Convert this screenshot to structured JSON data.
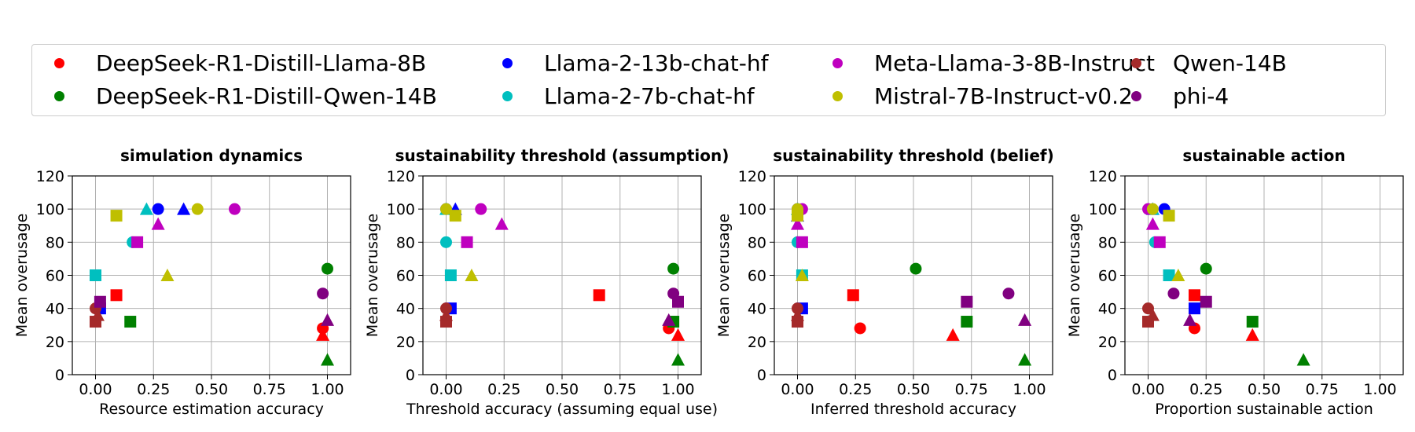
{
  "legend": {
    "placement": "top",
    "items": [
      {
        "name": "DeepSeek-R1-Distill-Llama-8B",
        "color": "#ff0000"
      },
      {
        "name": "DeepSeek-R1-Distill-Qwen-14B",
        "color": "#008000"
      },
      {
        "name": "Llama-2-13b-chat-hf",
        "color": "#0000ff"
      },
      {
        "name": "Llama-2-7b-chat-hf",
        "color": "#00bfbf"
      },
      {
        "name": "Meta-Llama-3-8B-Instruct",
        "color": "#bf00bf"
      },
      {
        "name": "Mistral-7B-Instruct-v0.2",
        "color": "#bfbf00"
      },
      {
        "name": "Qwen-14B",
        "color": "#a52a2a"
      },
      {
        "name": "phi-4",
        "color": "#800080"
      }
    ]
  },
  "chart_data": [
    {
      "type": "scatter",
      "title": "simulation dynamics",
      "xlabel": "Resource estimation accuracy",
      "ylabel": "Mean overusage",
      "xlim": [
        -0.1,
        1.1
      ],
      "ylim": [
        0,
        120
      ],
      "xticks": [
        "0.00",
        "0.25",
        "0.50",
        "0.75",
        "1.00"
      ],
      "yticks": [
        "0",
        "20",
        "40",
        "60",
        "80",
        "100",
        "120"
      ],
      "grid": true,
      "points": [
        {
          "series": "DeepSeek-R1-Distill-Llama-8B",
          "marker": "circle",
          "x": 0.98,
          "y": 28
        },
        {
          "series": "DeepSeek-R1-Distill-Llama-8B",
          "marker": "square",
          "x": 0.09,
          "y": 48
        },
        {
          "series": "DeepSeek-R1-Distill-Llama-8B",
          "marker": "triangle",
          "x": 0.98,
          "y": 24
        },
        {
          "series": "DeepSeek-R1-Distill-Qwen-14B",
          "marker": "circle",
          "x": 1.0,
          "y": 64
        },
        {
          "series": "DeepSeek-R1-Distill-Qwen-14B",
          "marker": "square",
          "x": 0.15,
          "y": 32
        },
        {
          "series": "DeepSeek-R1-Distill-Qwen-14B",
          "marker": "triangle",
          "x": 1.0,
          "y": 9
        },
        {
          "series": "Llama-2-13b-chat-hf",
          "marker": "circle",
          "x": 0.27,
          "y": 100
        },
        {
          "series": "Llama-2-13b-chat-hf",
          "marker": "square",
          "x": 0.02,
          "y": 40
        },
        {
          "series": "Llama-2-13b-chat-hf",
          "marker": "triangle",
          "x": 0.38,
          "y": 100
        },
        {
          "series": "Llama-2-7b-chat-hf",
          "marker": "circle",
          "x": 0.16,
          "y": 80
        },
        {
          "series": "Llama-2-7b-chat-hf",
          "marker": "square",
          "x": 0.0,
          "y": 60
        },
        {
          "series": "Llama-2-7b-chat-hf",
          "marker": "triangle",
          "x": 0.22,
          "y": 100
        },
        {
          "series": "Meta-Llama-3-8B-Instruct",
          "marker": "circle",
          "x": 0.6,
          "y": 100
        },
        {
          "series": "Meta-Llama-3-8B-Instruct",
          "marker": "square",
          "x": 0.18,
          "y": 80
        },
        {
          "series": "Meta-Llama-3-8B-Instruct",
          "marker": "triangle",
          "x": 0.27,
          "y": 91
        },
        {
          "series": "Mistral-7B-Instruct-v0.2",
          "marker": "circle",
          "x": 0.44,
          "y": 100
        },
        {
          "series": "Mistral-7B-Instruct-v0.2",
          "marker": "square",
          "x": 0.09,
          "y": 96
        },
        {
          "series": "Mistral-7B-Instruct-v0.2",
          "marker": "triangle",
          "x": 0.31,
          "y": 60
        },
        {
          "series": "Qwen-14B",
          "marker": "circle",
          "x": 0.0,
          "y": 40
        },
        {
          "series": "Qwen-14B",
          "marker": "square",
          "x": 0.0,
          "y": 32
        },
        {
          "series": "Qwen-14B",
          "marker": "triangle",
          "x": 0.01,
          "y": 36
        },
        {
          "series": "phi-4",
          "marker": "circle",
          "x": 0.98,
          "y": 49
        },
        {
          "series": "phi-4",
          "marker": "square",
          "x": 0.02,
          "y": 44
        },
        {
          "series": "phi-4",
          "marker": "triangle",
          "x": 1.0,
          "y": 33
        }
      ]
    },
    {
      "type": "scatter",
      "title": "sustainability threshold (assumption)",
      "xlabel": "Threshold accuracy (assuming equal use)",
      "ylabel": "Mean overusage",
      "xlim": [
        -0.1,
        1.1
      ],
      "ylim": [
        0,
        120
      ],
      "xticks": [
        "0.00",
        "0.25",
        "0.50",
        "0.75",
        "1.00"
      ],
      "yticks": [
        "0",
        "20",
        "40",
        "60",
        "80",
        "100",
        "120"
      ],
      "grid": true,
      "points": [
        {
          "series": "DeepSeek-R1-Distill-Llama-8B",
          "marker": "circle",
          "x": 0.96,
          "y": 28
        },
        {
          "series": "DeepSeek-R1-Distill-Llama-8B",
          "marker": "square",
          "x": 0.66,
          "y": 48
        },
        {
          "series": "DeepSeek-R1-Distill-Llama-8B",
          "marker": "triangle",
          "x": 1.0,
          "y": 24
        },
        {
          "series": "DeepSeek-R1-Distill-Qwen-14B",
          "marker": "circle",
          "x": 0.98,
          "y": 64
        },
        {
          "series": "DeepSeek-R1-Distill-Qwen-14B",
          "marker": "square",
          "x": 0.98,
          "y": 32
        },
        {
          "series": "DeepSeek-R1-Distill-Qwen-14B",
          "marker": "triangle",
          "x": 1.0,
          "y": 9
        },
        {
          "series": "Llama-2-13b-chat-hf",
          "marker": "circle",
          "x": 0.0,
          "y": 100
        },
        {
          "series": "Llama-2-13b-chat-hf",
          "marker": "square",
          "x": 0.02,
          "y": 40
        },
        {
          "series": "Llama-2-13b-chat-hf",
          "marker": "triangle",
          "x": 0.04,
          "y": 100
        },
        {
          "series": "Llama-2-7b-chat-hf",
          "marker": "circle",
          "x": 0.0,
          "y": 80
        },
        {
          "series": "Llama-2-7b-chat-hf",
          "marker": "square",
          "x": 0.02,
          "y": 60
        },
        {
          "series": "Llama-2-7b-chat-hf",
          "marker": "triangle",
          "x": 0.0,
          "y": 100
        },
        {
          "series": "Meta-Llama-3-8B-Instruct",
          "marker": "circle",
          "x": 0.15,
          "y": 100
        },
        {
          "series": "Meta-Llama-3-8B-Instruct",
          "marker": "square",
          "x": 0.09,
          "y": 80
        },
        {
          "series": "Meta-Llama-3-8B-Instruct",
          "marker": "triangle",
          "x": 0.24,
          "y": 91
        },
        {
          "series": "Mistral-7B-Instruct-v0.2",
          "marker": "circle",
          "x": 0.0,
          "y": 100
        },
        {
          "series": "Mistral-7B-Instruct-v0.2",
          "marker": "square",
          "x": 0.04,
          "y": 96
        },
        {
          "series": "Mistral-7B-Instruct-v0.2",
          "marker": "triangle",
          "x": 0.11,
          "y": 60
        },
        {
          "series": "Qwen-14B",
          "marker": "circle",
          "x": 0.0,
          "y": 40
        },
        {
          "series": "Qwen-14B",
          "marker": "square",
          "x": 0.0,
          "y": 32
        },
        {
          "series": "Qwen-14B",
          "marker": "triangle",
          "x": 0.0,
          "y": 36
        },
        {
          "series": "phi-4",
          "marker": "circle",
          "x": 0.98,
          "y": 49
        },
        {
          "series": "phi-4",
          "marker": "square",
          "x": 1.0,
          "y": 44
        },
        {
          "series": "phi-4",
          "marker": "triangle",
          "x": 0.96,
          "y": 33
        }
      ]
    },
    {
      "type": "scatter",
      "title": "sustainability threshold (belief)",
      "xlabel": "Inferred threshold accuracy",
      "ylabel": "Mean overusage",
      "xlim": [
        -0.1,
        1.1
      ],
      "ylim": [
        0,
        120
      ],
      "xticks": [
        "0.00",
        "0.25",
        "0.50",
        "0.75",
        "1.00"
      ],
      "yticks": [
        "0",
        "20",
        "40",
        "60",
        "80",
        "100",
        "120"
      ],
      "grid": true,
      "points": [
        {
          "series": "DeepSeek-R1-Distill-Llama-8B",
          "marker": "circle",
          "x": 0.27,
          "y": 28
        },
        {
          "series": "DeepSeek-R1-Distill-Llama-8B",
          "marker": "square",
          "x": 0.24,
          "y": 48
        },
        {
          "series": "DeepSeek-R1-Distill-Llama-8B",
          "marker": "triangle",
          "x": 0.67,
          "y": 24
        },
        {
          "series": "DeepSeek-R1-Distill-Qwen-14B",
          "marker": "circle",
          "x": 0.51,
          "y": 64
        },
        {
          "series": "DeepSeek-R1-Distill-Qwen-14B",
          "marker": "square",
          "x": 0.73,
          "y": 32
        },
        {
          "series": "DeepSeek-R1-Distill-Qwen-14B",
          "marker": "triangle",
          "x": 0.98,
          "y": 9
        },
        {
          "series": "Llama-2-13b-chat-hf",
          "marker": "circle",
          "x": 0.0,
          "y": 100
        },
        {
          "series": "Llama-2-13b-chat-hf",
          "marker": "square",
          "x": 0.02,
          "y": 40
        },
        {
          "series": "Llama-2-13b-chat-hf",
          "marker": "triangle",
          "x": 0.0,
          "y": 96
        },
        {
          "series": "Llama-2-7b-chat-hf",
          "marker": "circle",
          "x": 0.0,
          "y": 80
        },
        {
          "series": "Llama-2-7b-chat-hf",
          "marker": "square",
          "x": 0.02,
          "y": 60
        },
        {
          "series": "Llama-2-7b-chat-hf",
          "marker": "triangle",
          "x": 0.0,
          "y": 100
        },
        {
          "series": "Meta-Llama-3-8B-Instruct",
          "marker": "circle",
          "x": 0.02,
          "y": 100
        },
        {
          "series": "Meta-Llama-3-8B-Instruct",
          "marker": "square",
          "x": 0.02,
          "y": 80
        },
        {
          "series": "Meta-Llama-3-8B-Instruct",
          "marker": "triangle",
          "x": 0.0,
          "y": 91
        },
        {
          "series": "Mistral-7B-Instruct-v0.2",
          "marker": "circle",
          "x": 0.0,
          "y": 100
        },
        {
          "series": "Mistral-7B-Instruct-v0.2",
          "marker": "square",
          "x": 0.0,
          "y": 96
        },
        {
          "series": "Mistral-7B-Instruct-v0.2",
          "marker": "triangle",
          "x": 0.02,
          "y": 60
        },
        {
          "series": "Qwen-14B",
          "marker": "circle",
          "x": 0.0,
          "y": 40
        },
        {
          "series": "Qwen-14B",
          "marker": "square",
          "x": 0.0,
          "y": 32
        },
        {
          "series": "Qwen-14B",
          "marker": "triangle",
          "x": 0.0,
          "y": 36
        },
        {
          "series": "phi-4",
          "marker": "circle",
          "x": 0.91,
          "y": 49
        },
        {
          "series": "phi-4",
          "marker": "square",
          "x": 0.73,
          "y": 44
        },
        {
          "series": "phi-4",
          "marker": "triangle",
          "x": 0.98,
          "y": 33
        }
      ]
    },
    {
      "type": "scatter",
      "title": "sustainable action",
      "xlabel": "Proportion sustainable action",
      "ylabel": "Mean overusage",
      "xlim": [
        -0.1,
        1.1
      ],
      "ylim": [
        0,
        120
      ],
      "xticks": [
        "0.00",
        "0.25",
        "0.50",
        "0.75",
        "1.00"
      ],
      "yticks": [
        "0",
        "20",
        "40",
        "60",
        "80",
        "100",
        "120"
      ],
      "grid": true,
      "points": [
        {
          "series": "DeepSeek-R1-Distill-Llama-8B",
          "marker": "circle",
          "x": 0.2,
          "y": 28
        },
        {
          "series": "DeepSeek-R1-Distill-Llama-8B",
          "marker": "square",
          "x": 0.2,
          "y": 48
        },
        {
          "series": "DeepSeek-R1-Distill-Llama-8B",
          "marker": "triangle",
          "x": 0.45,
          "y": 24
        },
        {
          "series": "DeepSeek-R1-Distill-Qwen-14B",
          "marker": "circle",
          "x": 0.25,
          "y": 64
        },
        {
          "series": "DeepSeek-R1-Distill-Qwen-14B",
          "marker": "square",
          "x": 0.45,
          "y": 32
        },
        {
          "series": "DeepSeek-R1-Distill-Qwen-14B",
          "marker": "triangle",
          "x": 0.67,
          "y": 9
        },
        {
          "series": "Llama-2-13b-chat-hf",
          "marker": "circle",
          "x": 0.07,
          "y": 100
        },
        {
          "series": "Llama-2-13b-chat-hf",
          "marker": "square",
          "x": 0.2,
          "y": 40
        },
        {
          "series": "Llama-2-13b-chat-hf",
          "marker": "triangle",
          "x": 0.02,
          "y": 100
        },
        {
          "series": "Llama-2-7b-chat-hf",
          "marker": "circle",
          "x": 0.03,
          "y": 80
        },
        {
          "series": "Llama-2-7b-chat-hf",
          "marker": "square",
          "x": 0.09,
          "y": 60
        },
        {
          "series": "Llama-2-7b-chat-hf",
          "marker": "triangle",
          "x": 0.02,
          "y": 100
        },
        {
          "series": "Meta-Llama-3-8B-Instruct",
          "marker": "circle",
          "x": 0.0,
          "y": 100
        },
        {
          "series": "Meta-Llama-3-8B-Instruct",
          "marker": "square",
          "x": 0.05,
          "y": 80
        },
        {
          "series": "Meta-Llama-3-8B-Instruct",
          "marker": "triangle",
          "x": 0.02,
          "y": 91
        },
        {
          "series": "Mistral-7B-Instruct-v0.2",
          "marker": "circle",
          "x": 0.02,
          "y": 100
        },
        {
          "series": "Mistral-7B-Instruct-v0.2",
          "marker": "square",
          "x": 0.09,
          "y": 96
        },
        {
          "series": "Mistral-7B-Instruct-v0.2",
          "marker": "triangle",
          "x": 0.13,
          "y": 60
        },
        {
          "series": "Qwen-14B",
          "marker": "circle",
          "x": 0.0,
          "y": 40
        },
        {
          "series": "Qwen-14B",
          "marker": "square",
          "x": 0.0,
          "y": 32
        },
        {
          "series": "Qwen-14B",
          "marker": "triangle",
          "x": 0.02,
          "y": 36
        },
        {
          "series": "phi-4",
          "marker": "circle",
          "x": 0.11,
          "y": 49
        },
        {
          "series": "phi-4",
          "marker": "square",
          "x": 0.25,
          "y": 44
        },
        {
          "series": "phi-4",
          "marker": "triangle",
          "x": 0.18,
          "y": 33
        }
      ]
    }
  ]
}
